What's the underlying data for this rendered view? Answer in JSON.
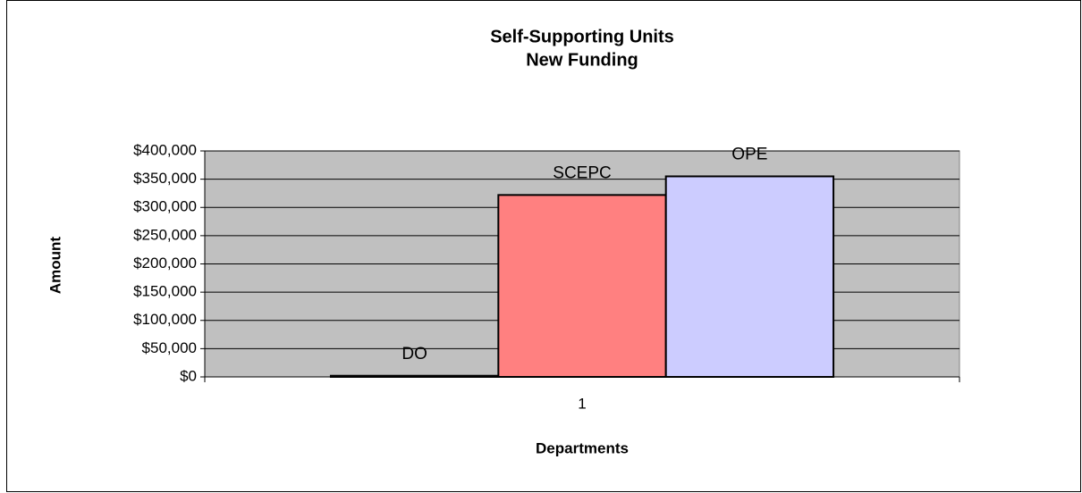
{
  "chart_data": {
    "type": "bar",
    "title": [
      "Self-Supporting Units",
      "New Funding"
    ],
    "x_label": "Departments",
    "y_label": "Amount",
    "categories": [
      "1"
    ],
    "series": [
      {
        "name": "DO",
        "color": "#9999ff",
        "values": [
          2000
        ]
      },
      {
        "name": "SCEPC",
        "color": "#ff8080",
        "values": [
          322000
        ]
      },
      {
        "name": "OPE",
        "color": "#ccccff",
        "values": [
          355000
        ]
      }
    ],
    "ylim": [
      0,
      400000
    ],
    "yticks": [
      {
        "value": 0,
        "label": "$0"
      },
      {
        "value": 50000,
        "label": "$50,000"
      },
      {
        "value": 100000,
        "label": "$100,000"
      },
      {
        "value": 150000,
        "label": "$150,000"
      },
      {
        "value": 200000,
        "label": "$200,000"
      },
      {
        "value": 250000,
        "label": "$250,000"
      },
      {
        "value": 300000,
        "label": "$300,000"
      },
      {
        "value": 350000,
        "label": "$350,000"
      },
      {
        "value": 400000,
        "label": "$400,000"
      }
    ],
    "grid": true,
    "plot_background": "#c0c0c0"
  }
}
